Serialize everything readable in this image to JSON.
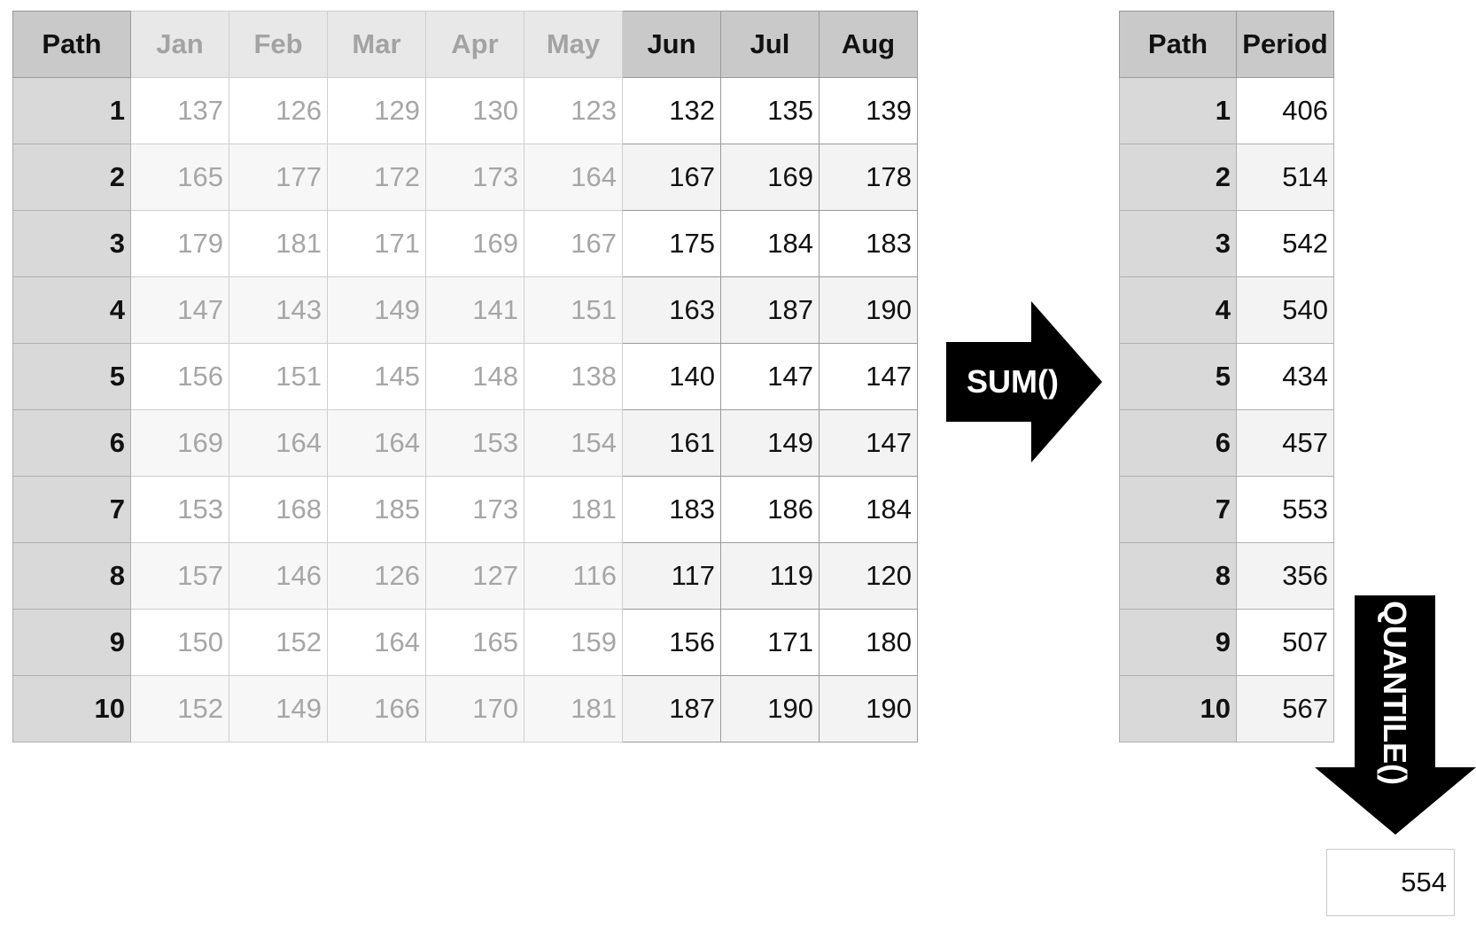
{
  "main_table": {
    "path_header": "Path",
    "inactive_months": [
      "Jan",
      "Feb",
      "Mar",
      "Apr",
      "May"
    ],
    "active_months": [
      "Jun",
      "Jul",
      "Aug"
    ],
    "rows": [
      {
        "path": "1",
        "inactive": [
          "137",
          "126",
          "129",
          "130",
          "123"
        ],
        "active": [
          "132",
          "135",
          "139"
        ]
      },
      {
        "path": "2",
        "inactive": [
          "165",
          "177",
          "172",
          "173",
          "164"
        ],
        "active": [
          "167",
          "169",
          "178"
        ]
      },
      {
        "path": "3",
        "inactive": [
          "179",
          "181",
          "171",
          "169",
          "167"
        ],
        "active": [
          "175",
          "184",
          "183"
        ]
      },
      {
        "path": "4",
        "inactive": [
          "147",
          "143",
          "149",
          "141",
          "151"
        ],
        "active": [
          "163",
          "187",
          "190"
        ]
      },
      {
        "path": "5",
        "inactive": [
          "156",
          "151",
          "145",
          "148",
          "138"
        ],
        "active": [
          "140",
          "147",
          "147"
        ]
      },
      {
        "path": "6",
        "inactive": [
          "169",
          "164",
          "164",
          "153",
          "154"
        ],
        "active": [
          "161",
          "149",
          "147"
        ]
      },
      {
        "path": "7",
        "inactive": [
          "153",
          "168",
          "185",
          "173",
          "181"
        ],
        "active": [
          "183",
          "186",
          "184"
        ]
      },
      {
        "path": "8",
        "inactive": [
          "157",
          "146",
          "126",
          "127",
          "116"
        ],
        "active": [
          "117",
          "119",
          "120"
        ]
      },
      {
        "path": "9",
        "inactive": [
          "150",
          "152",
          "164",
          "165",
          "159"
        ],
        "active": [
          "156",
          "171",
          "180"
        ]
      },
      {
        "path": "10",
        "inactive": [
          "152",
          "149",
          "166",
          "170",
          "181"
        ],
        "active": [
          "187",
          "190",
          "190"
        ]
      }
    ]
  },
  "sum_arrow": {
    "label": "SUM()"
  },
  "sum_table": {
    "path_header": "Path",
    "period_header": "Period",
    "rows": [
      {
        "path": "1",
        "period": "406"
      },
      {
        "path": "2",
        "period": "514"
      },
      {
        "path": "3",
        "period": "542"
      },
      {
        "path": "4",
        "period": "540"
      },
      {
        "path": "5",
        "period": "434"
      },
      {
        "path": "6",
        "period": "457"
      },
      {
        "path": "7",
        "period": "553"
      },
      {
        "path": "8",
        "period": "356"
      },
      {
        "path": "9",
        "period": "507"
      },
      {
        "path": "10",
        "period": "567"
      }
    ]
  },
  "quantile_arrow": {
    "label": "QUANTILE()"
  },
  "result": {
    "value": "554"
  },
  "colors": {
    "header_bg": "#c9c9c9",
    "path_bg": "#d9d9d9",
    "dim_text": "#a6a6a6",
    "arrow_fill": "#000000"
  }
}
